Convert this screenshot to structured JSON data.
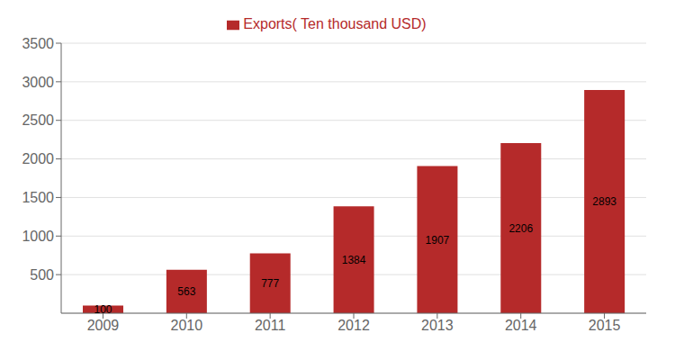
{
  "chart_data": {
    "type": "bar",
    "categories": [
      "2009",
      "2010",
      "2011",
      "2012",
      "2013",
      "2014",
      "2015"
    ],
    "series": [
      {
        "name": "Exports( Ten thousand USD)",
        "color": "#b52a2a",
        "values": [
          100,
          563,
          777,
          1384,
          1907,
          2206,
          2893
        ]
      }
    ],
    "ylim": [
      0,
      3500
    ],
    "yticks": [
      500,
      1000,
      1500,
      2000,
      2500,
      3000,
      3500
    ],
    "grid": true,
    "legend": "top",
    "data_labels": true
  }
}
